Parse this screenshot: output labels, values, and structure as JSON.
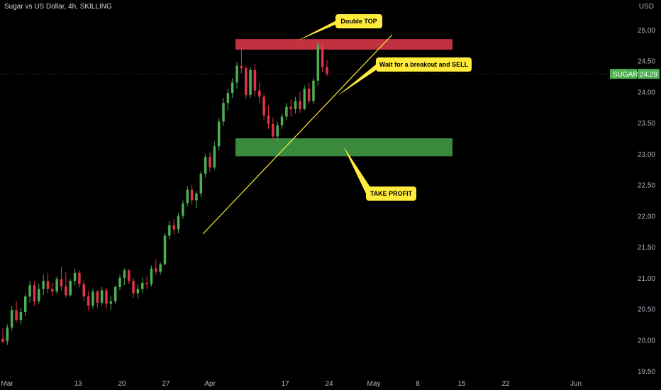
{
  "header": {
    "title": "Sugar vs US Dollar, 4h, SKILLING",
    "currency": "USD"
  },
  "chart_data": {
    "type": "candlestick",
    "symbol": "SUGAR",
    "last_price": 24.29,
    "last_price_label": "24.29",
    "ylim": [
      19.5,
      25.0
    ],
    "y_ticks": [
      "19.50",
      "20.00",
      "20.50",
      "21.00",
      "21.50",
      "22.00",
      "22.50",
      "23.00",
      "23.50",
      "24.00",
      "24.50",
      "25.00"
    ],
    "x_ticks": [
      "Mar",
      "13",
      "20",
      "27",
      "Apr",
      "17",
      "24",
      "May",
      "8",
      "15",
      "22",
      "Jun"
    ],
    "up_color": "#4caf50",
    "down_color": "#e0344a",
    "candles": [
      [
        20.02,
        20.18,
        19.95,
        19.97
      ],
      [
        19.98,
        20.25,
        19.92,
        20.2
      ],
      [
        20.2,
        20.55,
        20.15,
        20.48
      ],
      [
        20.48,
        20.62,
        20.28,
        20.32
      ],
      [
        20.32,
        20.52,
        20.25,
        20.45
      ],
      [
        20.45,
        20.75,
        20.38,
        20.7
      ],
      [
        20.7,
        20.95,
        20.6,
        20.88
      ],
      [
        20.88,
        20.95,
        20.55,
        20.62
      ],
      [
        20.62,
        20.9,
        20.58,
        20.82
      ],
      [
        20.82,
        21.05,
        20.72,
        20.95
      ],
      [
        20.95,
        21.08,
        20.75,
        20.82
      ],
      [
        20.82,
        20.92,
        20.7,
        20.78
      ],
      [
        20.78,
        21.02,
        20.74,
        20.98
      ],
      [
        20.98,
        21.18,
        20.8,
        20.86
      ],
      [
        20.86,
        21.1,
        20.68,
        20.72
      ],
      [
        20.72,
        20.98,
        20.7,
        20.95
      ],
      [
        20.95,
        21.15,
        20.88,
        21.08
      ],
      [
        21.08,
        21.12,
        20.84,
        20.9
      ],
      [
        20.9,
        20.96,
        20.62,
        20.7
      ],
      [
        20.7,
        20.78,
        20.48,
        20.55
      ],
      [
        20.55,
        20.82,
        20.5,
        20.78
      ],
      [
        20.78,
        20.8,
        20.52,
        20.6
      ],
      [
        20.6,
        20.85,
        20.56,
        20.8
      ],
      [
        20.8,
        20.84,
        20.5,
        20.58
      ],
      [
        20.58,
        20.7,
        20.48,
        20.62
      ],
      [
        20.62,
        20.88,
        20.58,
        20.85
      ],
      [
        20.85,
        21.05,
        20.8,
        21.0
      ],
      [
        21.0,
        21.15,
        20.88,
        21.12
      ],
      [
        21.12,
        21.14,
        20.9,
        20.95
      ],
      [
        20.95,
        21.0,
        20.68,
        20.75
      ],
      [
        20.75,
        20.9,
        20.66,
        20.82
      ],
      [
        20.82,
        21.0,
        20.76,
        20.92
      ],
      [
        20.92,
        21.02,
        20.82,
        20.9
      ],
      [
        20.9,
        21.2,
        20.86,
        21.15
      ],
      [
        21.15,
        21.3,
        21.05,
        21.1
      ],
      [
        21.1,
        21.25,
        21.05,
        21.22
      ],
      [
        21.22,
        21.72,
        21.2,
        21.68
      ],
      [
        21.68,
        21.92,
        21.62,
        21.85
      ],
      [
        21.85,
        21.95,
        21.7,
        21.78
      ],
      [
        21.78,
        22.05,
        21.72,
        22.0
      ],
      [
        22.0,
        22.25,
        21.95,
        22.2
      ],
      [
        22.2,
        22.48,
        22.15,
        22.42
      ],
      [
        22.42,
        22.5,
        22.18,
        22.25
      ],
      [
        22.25,
        22.4,
        22.12,
        22.36
      ],
      [
        22.36,
        22.72,
        22.3,
        22.68
      ],
      [
        22.68,
        23.0,
        22.62,
        22.95
      ],
      [
        22.95,
        23.02,
        22.7,
        22.78
      ],
      [
        22.78,
        23.2,
        22.74,
        23.12
      ],
      [
        23.12,
        23.58,
        23.05,
        23.52
      ],
      [
        23.52,
        23.9,
        23.45,
        23.82
      ],
      [
        23.82,
        24.05,
        23.7,
        23.98
      ],
      [
        23.98,
        24.22,
        23.9,
        24.15
      ],
      [
        24.15,
        24.48,
        24.05,
        24.42
      ],
      [
        24.42,
        24.72,
        24.3,
        24.38
      ],
      [
        24.38,
        24.42,
        23.88,
        23.95
      ],
      [
        23.95,
        24.4,
        23.9,
        24.35
      ],
      [
        24.35,
        24.45,
        23.92,
        24.02
      ],
      [
        24.02,
        24.15,
        23.82,
        23.92
      ],
      [
        23.92,
        23.98,
        23.55,
        23.62
      ],
      [
        23.62,
        23.78,
        23.4,
        23.48
      ],
      [
        23.48,
        23.58,
        23.22,
        23.28
      ],
      [
        23.28,
        23.52,
        23.2,
        23.46
      ],
      [
        23.46,
        23.65,
        23.4,
        23.6
      ],
      [
        23.6,
        23.82,
        23.55,
        23.76
      ],
      [
        23.76,
        23.88,
        23.6,
        23.72
      ],
      [
        23.72,
        23.92,
        23.65,
        23.85
      ],
      [
        23.85,
        24.0,
        23.66,
        23.72
      ],
      [
        23.72,
        24.1,
        23.7,
        24.05
      ],
      [
        24.05,
        24.15,
        23.8,
        23.85
      ],
      [
        23.85,
        24.22,
        23.8,
        24.18
      ],
      [
        24.18,
        24.8,
        24.1,
        24.75
      ],
      [
        24.75,
        24.8,
        24.32,
        24.4
      ],
      [
        24.4,
        24.52,
        24.25,
        24.29
      ]
    ]
  },
  "annotations": {
    "double_top": {
      "label": "Double TOP",
      "zone_top": 24.85,
      "zone_bottom": 24.68,
      "fill": "#c2313f"
    },
    "take_profit": {
      "label": "TAKE PROFIT",
      "zone_top": 23.25,
      "zone_bottom": 22.96,
      "fill": "#3a8a3e"
    },
    "breakout": {
      "label": "Wait for a breakout and SELL"
    },
    "callout_color": "#ffeb3b",
    "trendline_color": "#ffeb3b"
  }
}
